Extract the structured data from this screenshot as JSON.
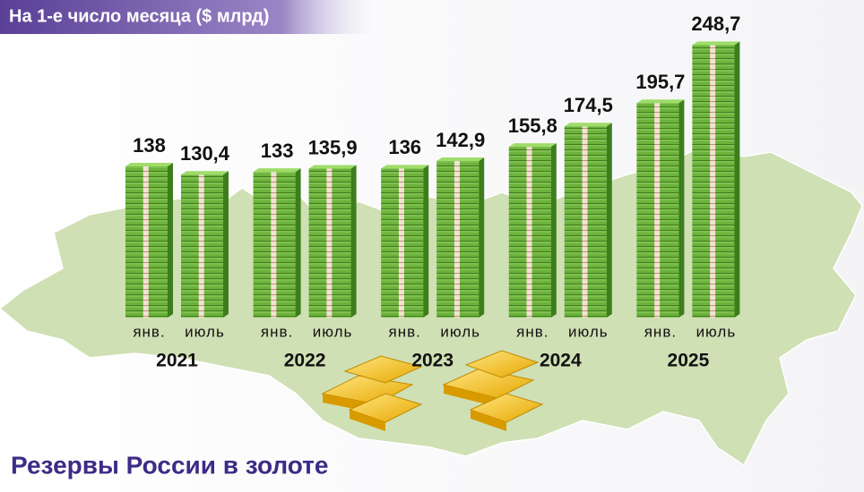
{
  "chart_data": {
    "type": "bar",
    "title": "Резервы России в золоте",
    "subtitle": "На 1-е число месяца ($ млрд)",
    "groups": [
      "2021",
      "2022",
      "2023",
      "2024",
      "2025"
    ],
    "categories": [
      "янв.",
      "июль",
      "янв.",
      "июль",
      "янв.",
      "июль",
      "янв.",
      "июль",
      "янв.",
      "июль"
    ],
    "values": [
      138,
      130.4,
      133,
      135.9,
      136,
      142.9,
      155.8,
      174.5,
      195.7,
      248.7
    ],
    "value_labels": [
      "138",
      "130,4",
      "133",
      "135,9",
      "136",
      "142,9",
      "155,8",
      "174,5",
      "195,7",
      "248,7"
    ],
    "color": "#6cb23c"
  }
}
